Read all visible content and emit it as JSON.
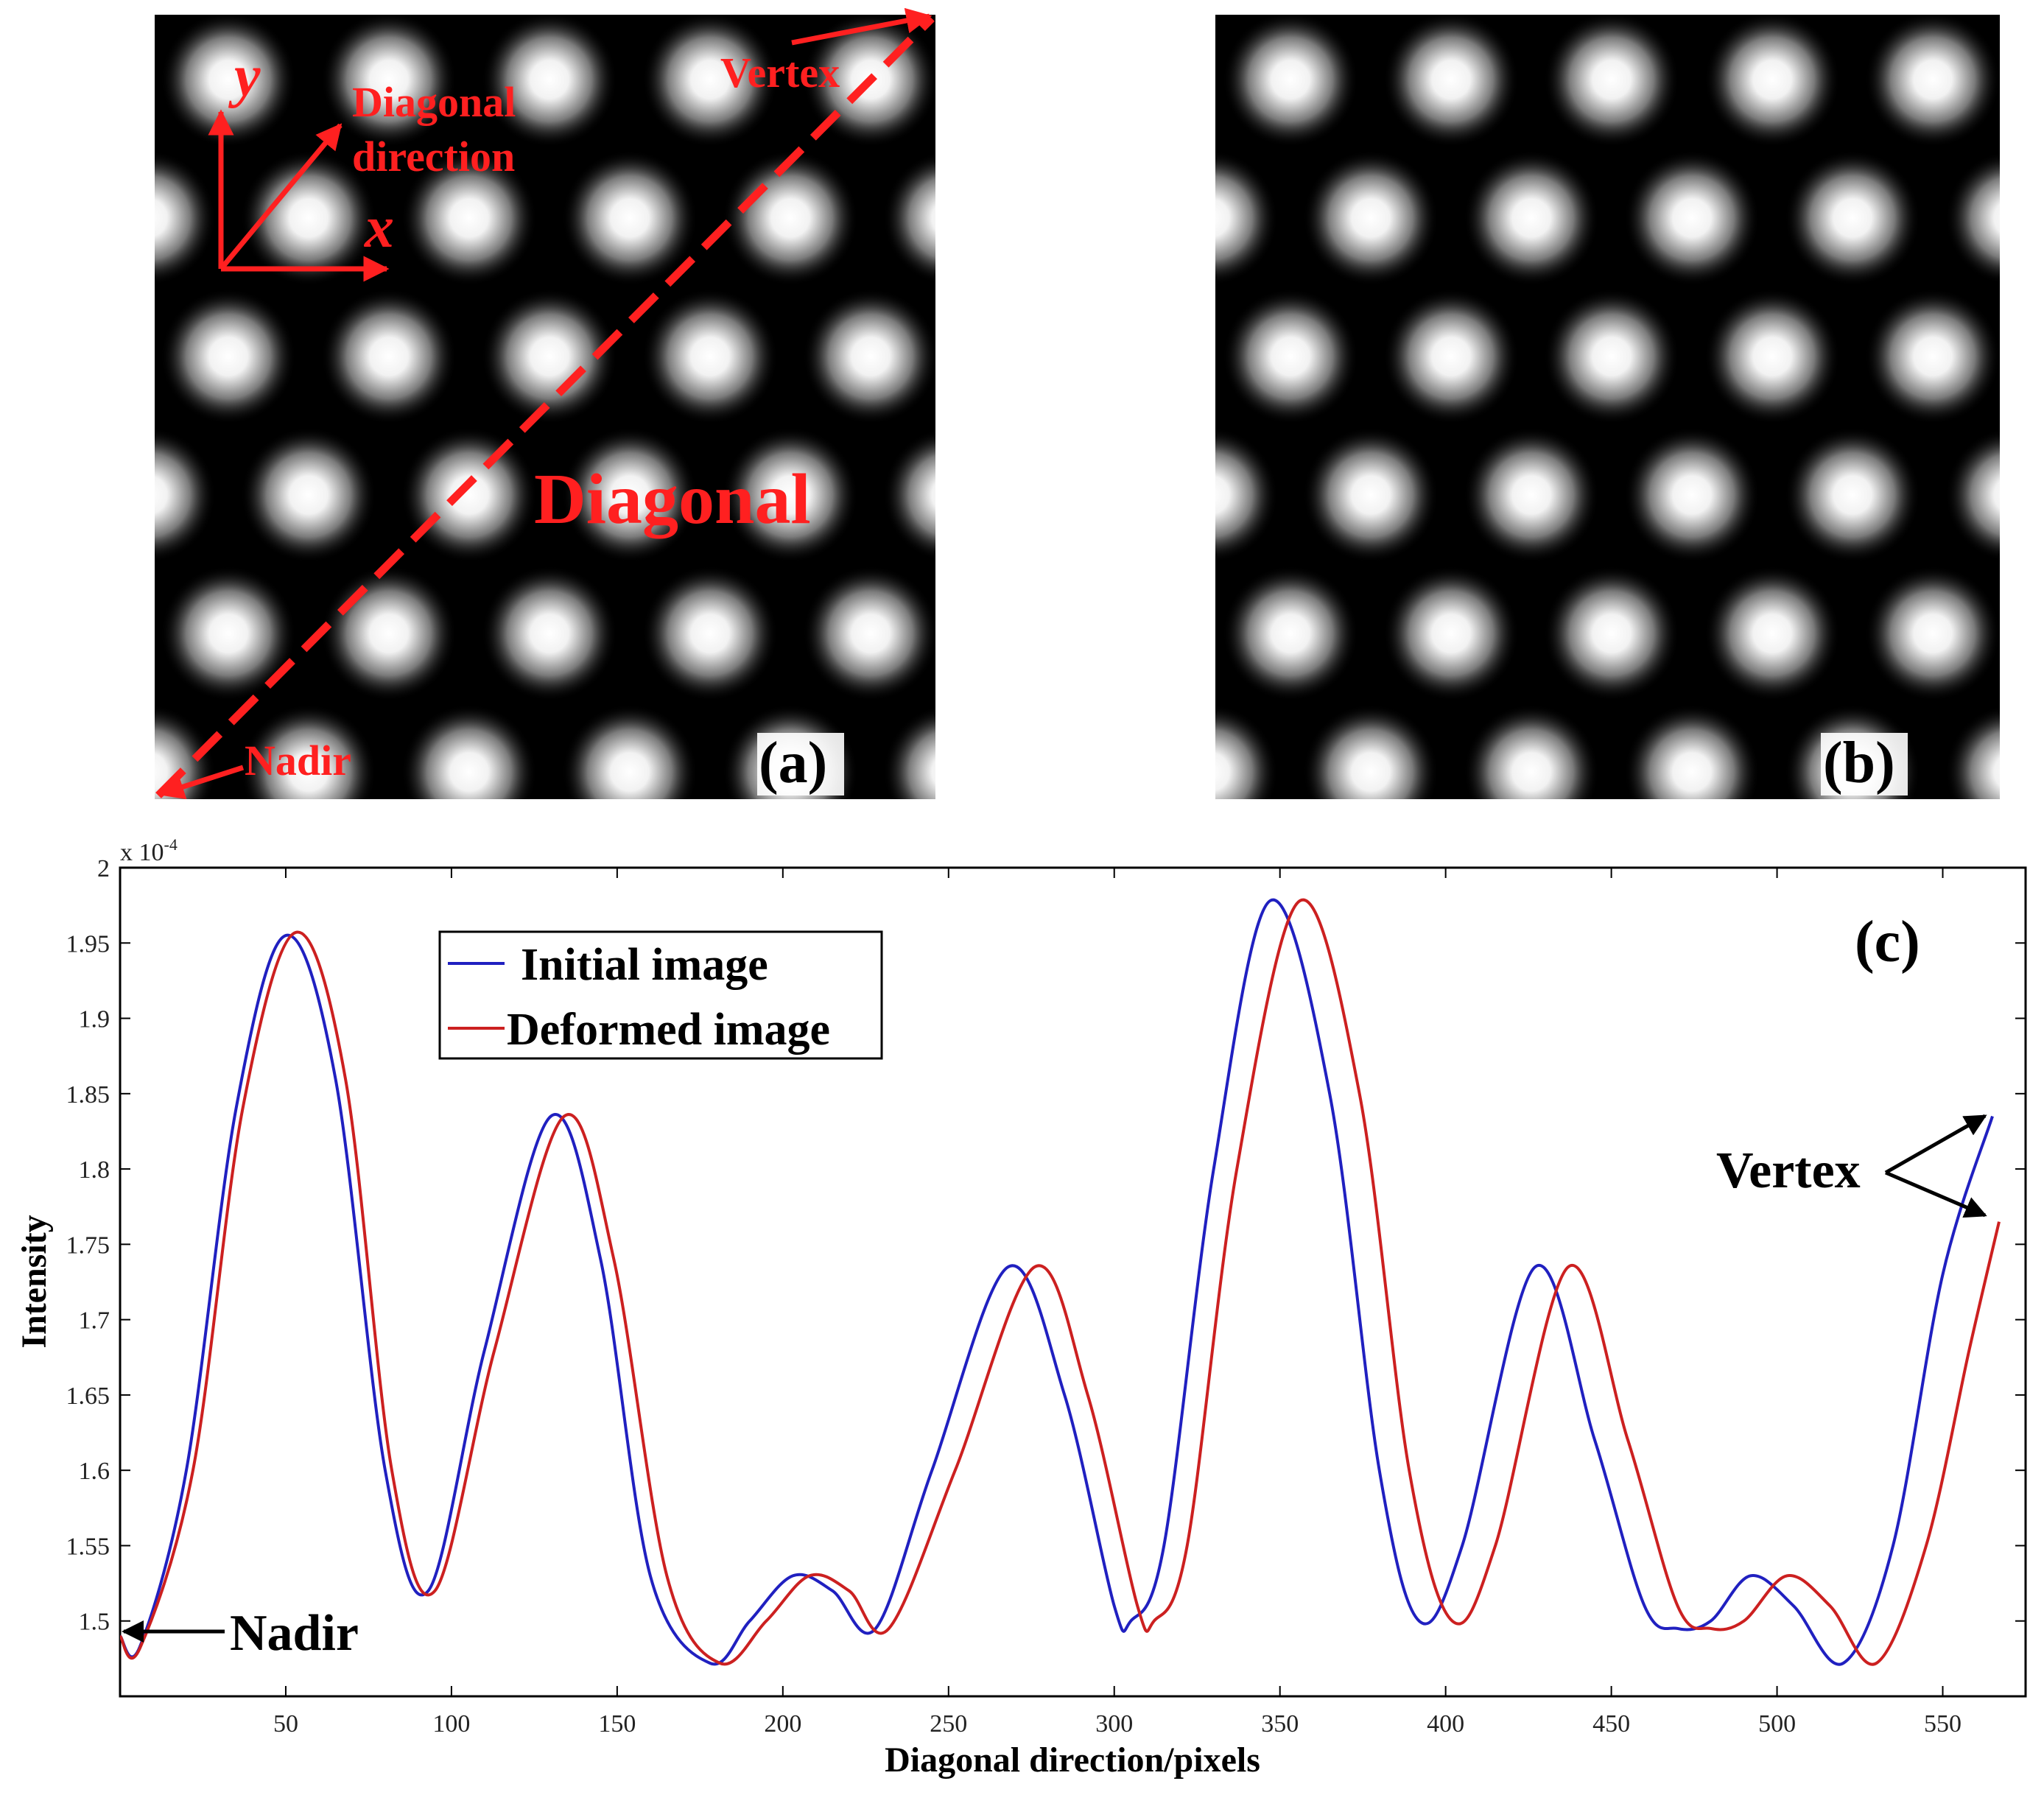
{
  "panel_a": {
    "label": "(a)",
    "axis_y": "y",
    "axis_x": "x",
    "diagonal_direction_line1": "Diagonal",
    "diagonal_direction_line2": "direction",
    "diagonal": "Diagonal",
    "vertex": "Vertex",
    "nadir": "Nadir",
    "annotation_color": "#ff2020"
  },
  "panel_b": {
    "label": "(b)"
  },
  "chart_data": {
    "type": "line",
    "panel_label": "(c)",
    "xlabel": "Diagonal direction/pixels",
    "ylabel": "Intensity",
    "exponent_label": "x 10",
    "exponent_power": "-4",
    "xlim": [
      0,
      575
    ],
    "ylim": [
      1.45,
      2.0
    ],
    "xticks": [
      50,
      100,
      150,
      200,
      250,
      300,
      350,
      400,
      450,
      500,
      550
    ],
    "yticks": [
      1.5,
      1.55,
      1.6,
      1.65,
      1.7,
      1.75,
      1.8,
      1.85,
      1.9,
      1.95,
      2
    ],
    "ytick_labels": [
      "1.5",
      "1.55",
      "1.6",
      "1.65",
      "1.7",
      "1.75",
      "1.8",
      "1.85",
      "1.9",
      "1.95",
      "2"
    ],
    "series": [
      {
        "name": "Initial image",
        "color": "#2020c0",
        "x": [
          0,
          6,
          20,
          35,
          50,
          65,
          80,
          93,
          110,
          130,
          145,
          160,
          178,
          190,
          203,
          215,
          228,
          245,
          268,
          285,
          300,
          305,
          315,
          330,
          347,
          365,
          380,
          392,
          405,
          427,
          445,
          460,
          470,
          480,
          492,
          505,
          520,
          535,
          550,
          565
        ],
        "values": [
          1.49,
          1.483,
          1.6,
          1.84,
          1.955,
          1.86,
          1.6,
          1.52,
          1.68,
          1.835,
          1.74,
          1.53,
          1.472,
          1.5,
          1.53,
          1.52,
          1.495,
          1.6,
          1.735,
          1.65,
          1.51,
          1.5,
          1.55,
          1.8,
          1.978,
          1.85,
          1.6,
          1.5,
          1.55,
          1.735,
          1.62,
          1.51,
          1.495,
          1.5,
          1.53,
          1.51,
          1.472,
          1.55,
          1.73,
          1.835
        ]
      },
      {
        "name": "Deformed image",
        "color": "#cc2020",
        "x": [
          0,
          6,
          22,
          37,
          53,
          68,
          82,
          95,
          113,
          134,
          149,
          165,
          181,
          195,
          208,
          220,
          232,
          252,
          276,
          292,
          307,
          312,
          322,
          337,
          356,
          374,
          389,
          402,
          415,
          437,
          455,
          470,
          480,
          490,
          503,
          516,
          530,
          545,
          558,
          567
        ],
        "values": [
          1.49,
          1.482,
          1.6,
          1.84,
          1.957,
          1.86,
          1.6,
          1.52,
          1.68,
          1.835,
          1.74,
          1.53,
          1.472,
          1.5,
          1.53,
          1.52,
          1.495,
          1.6,
          1.735,
          1.65,
          1.51,
          1.5,
          1.55,
          1.8,
          1.978,
          1.85,
          1.6,
          1.5,
          1.55,
          1.735,
          1.62,
          1.51,
          1.495,
          1.5,
          1.53,
          1.51,
          1.472,
          1.55,
          1.68,
          1.765
        ]
      }
    ],
    "annotations": [
      {
        "text": "Nadir"
      },
      {
        "text": "Vertex"
      }
    ]
  }
}
